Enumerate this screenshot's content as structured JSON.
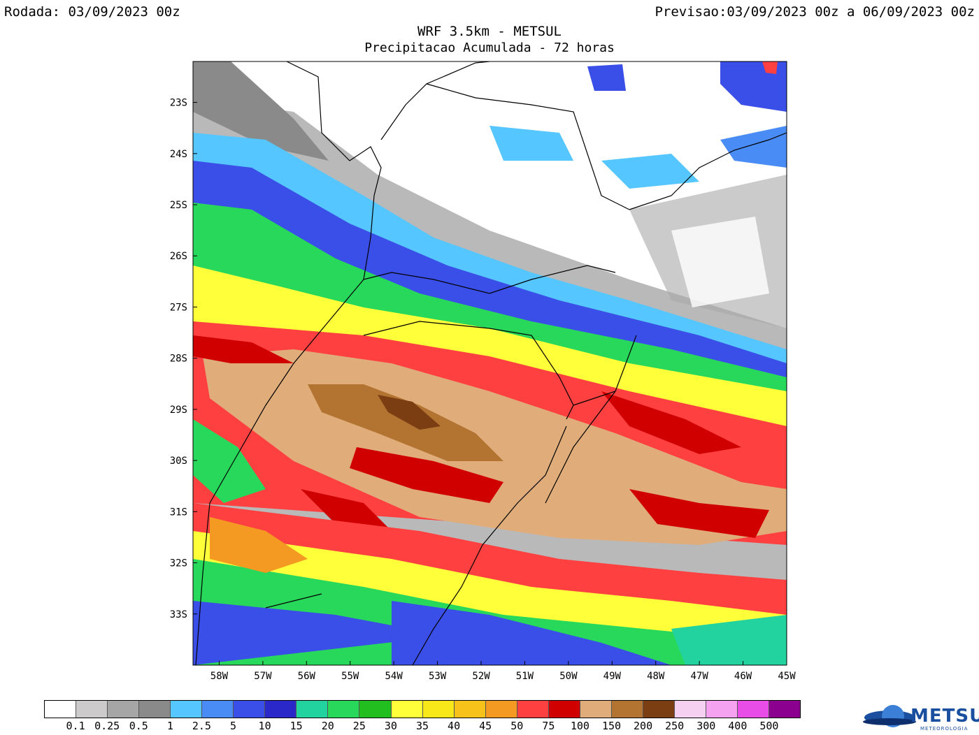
{
  "header": {
    "run_label": "Rodada: 03/09/2023 00z",
    "forecast_label": "Previsao:03/09/2023 00z a 06/09/2023 00z",
    "title": "WRF 3.5km - METSUL",
    "subtitle": "Precipitacao Acumulada - 72 horas"
  },
  "map": {
    "lat_labels": [
      "23S",
      "24S",
      "25S",
      "26S",
      "27S",
      "28S",
      "29S",
      "30S",
      "31S",
      "32S",
      "33S"
    ],
    "lon_labels": [
      "58W",
      "57W",
      "56W",
      "55W",
      "54W",
      "53W",
      "52W",
      "51W",
      "50W",
      "49W",
      "48W",
      "47W",
      "46W",
      "45W"
    ],
    "lat_range": [
      -34.0,
      -22.2
    ],
    "lon_range": [
      -58.6,
      -45.0
    ]
  },
  "legend": {
    "colors": [
      "#ffffff",
      "#cdcacb",
      "#a6a6a6",
      "#8a8a8a",
      "#55c6ff",
      "#4a8cf5",
      "#3a4ee8",
      "#2a28c8",
      "#22d29f",
      "#28d85a",
      "#22be20",
      "#ffff3a",
      "#f8e81a",
      "#f7c31a",
      "#f49a22",
      "#ff4040",
      "#d00000",
      "#e0ad7a",
      "#b27430",
      "#7a3e12",
      "#f5d0f0",
      "#f5a3f0",
      "#e84de8",
      "#8c0090"
    ],
    "labels": [
      "0.1",
      "0.25",
      "0.5",
      "1",
      "2.5",
      "5",
      "10",
      "15",
      "20",
      "25",
      "30",
      "35",
      "40",
      "45",
      "50",
      "75",
      "100",
      "150",
      "200",
      "250",
      "300",
      "400",
      "500"
    ]
  },
  "logo": {
    "name": "METSUL",
    "tagline": "METEOROLOGIA"
  }
}
